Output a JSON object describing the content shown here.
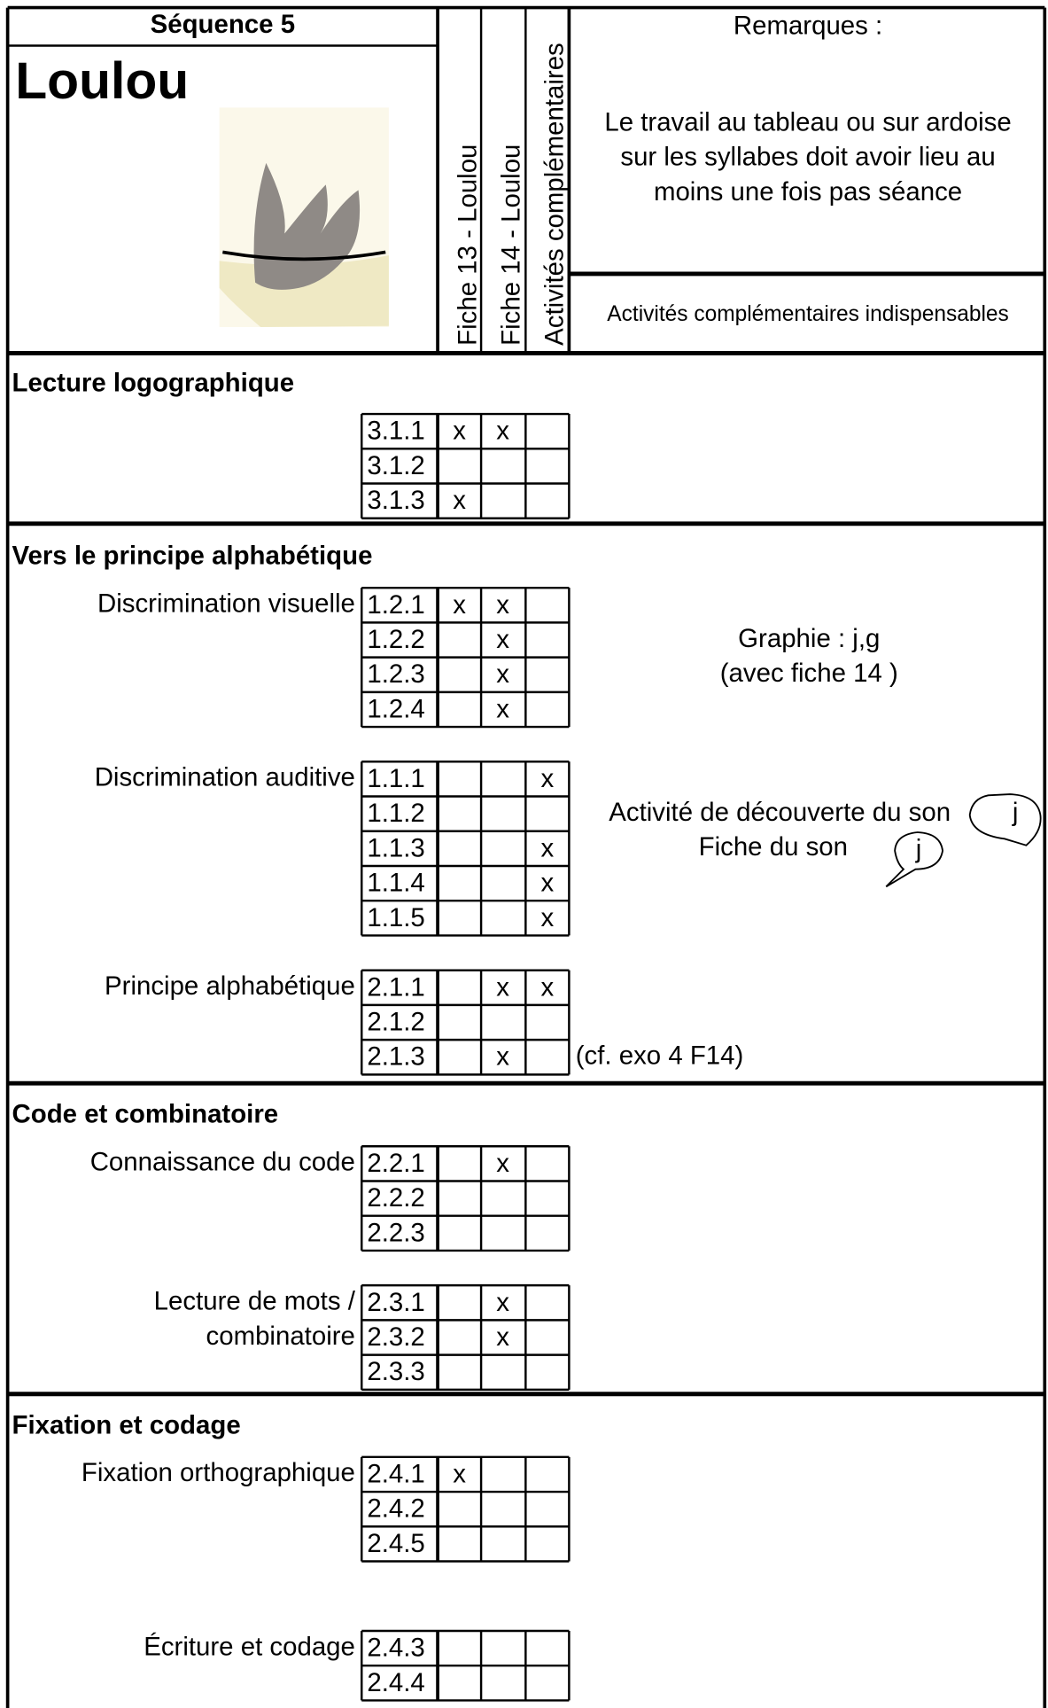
{
  "header": {
    "sequence": "Séquence 5",
    "title": "Loulou",
    "columns": [
      "Fiche 13 - Loulou",
      "Fiche 14 - Loulou",
      "Activités complémentaires"
    ],
    "remarks_label": "Remarques :",
    "remarks": [
      "Le travail au tableau ou sur ardoise",
      "sur les syllabes doit avoir lieu au",
      "moins une fois pas séance"
    ],
    "activities": "Activités complémentaires indispensables"
  },
  "sections": [
    {
      "title": "Lecture  logographique",
      "groups": [
        {
          "rows": [
            {
              "code": "3.1.1",
              "marks": [
                "x",
                "x",
                null
              ]
            },
            {
              "code": "3.1.2",
              "marks": [
                null,
                null,
                null
              ]
            },
            {
              "code": "3.1.3",
              "marks": [
                "x",
                null,
                null
              ]
            }
          ]
        }
      ]
    },
    {
      "title": "Vers le principe alphabétique",
      "groups": [
        {
          "label": [
            "Discrimination visuelle"
          ],
          "rows": [
            {
              "code": "1.2.1",
              "marks": [
                "x",
                "x",
                null
              ]
            },
            {
              "code": "1.2.2",
              "marks": [
                null,
                "x",
                null
              ]
            },
            {
              "code": "1.2.3",
              "marks": [
                null,
                "x",
                null
              ]
            },
            {
              "code": "1.2.4",
              "marks": [
                null,
                "x",
                null
              ]
            }
          ]
        },
        {
          "label": [
            "Discrimination auditive"
          ],
          "rows": [
            {
              "code": "1.1.1",
              "marks": [
                null,
                null,
                "x"
              ]
            },
            {
              "code": "1.1.2",
              "marks": [
                null,
                null,
                null
              ]
            },
            {
              "code": "1.1.3",
              "marks": [
                null,
                null,
                "x"
              ]
            },
            {
              "code": "1.1.4",
              "marks": [
                null,
                null,
                "x"
              ]
            },
            {
              "code": "1.1.5",
              "marks": [
                null,
                null,
                "x"
              ]
            }
          ]
        },
        {
          "label": [
            "Principe alphabétique"
          ],
          "rows": [
            {
              "code": "2.1.1",
              "marks": [
                null,
                "x",
                "x"
              ]
            },
            {
              "code": "2.1.2",
              "marks": [
                null,
                null,
                null
              ]
            },
            {
              "code": "2.1.3",
              "marks": [
                null,
                "x",
                null
              ]
            }
          ]
        }
      ]
    },
    {
      "title": "Code et combinatoire",
      "groups": [
        {
          "label": [
            "Connaissance du code"
          ],
          "rows": [
            {
              "code": "2.2.1",
              "marks": [
                null,
                "x",
                null
              ]
            },
            {
              "code": "2.2.2",
              "marks": [
                null,
                null,
                null
              ]
            },
            {
              "code": "2.2.3",
              "marks": [
                null,
                null,
                null
              ]
            }
          ]
        },
        {
          "label": [
            "Lecture de mots /",
            "combinatoire"
          ],
          "rows": [
            {
              "code": "2.3.1",
              "marks": [
                null,
                "x",
                null
              ]
            },
            {
              "code": "2.3.2",
              "marks": [
                null,
                "x",
                null
              ]
            },
            {
              "code": "2.3.3",
              "marks": [
                null,
                null,
                null
              ]
            }
          ]
        }
      ]
    },
    {
      "title": "Fixation et codage",
      "groups": [
        {
          "label": [
            "Fixation orthographique"
          ],
          "rows": [
            {
              "code": "2.4.1",
              "marks": [
                "x",
                null,
                null
              ]
            },
            {
              "code": "2.4.2",
              "marks": [
                null,
                null,
                null
              ]
            },
            {
              "code": "2.4.5",
              "marks": [
                null,
                null,
                null
              ]
            }
          ]
        },
        {
          "label": [
            "Écriture et codage"
          ],
          "rows": [
            {
              "code": "2.4.3",
              "marks": [
                null,
                null,
                null
              ]
            },
            {
              "code": "2.4.4",
              "marks": [
                null,
                null,
                null
              ]
            }
          ]
        }
      ]
    }
  ],
  "notes": {
    "graphie": [
      "Graphie :  j,g",
      "(avec fiche 14 )"
    ],
    "son": [
      "Activité de découverte du son",
      "Fiche du son"
    ],
    "bubbles": [
      "j",
      "j"
    ],
    "cf": "(cf. exo 4 F14)"
  }
}
